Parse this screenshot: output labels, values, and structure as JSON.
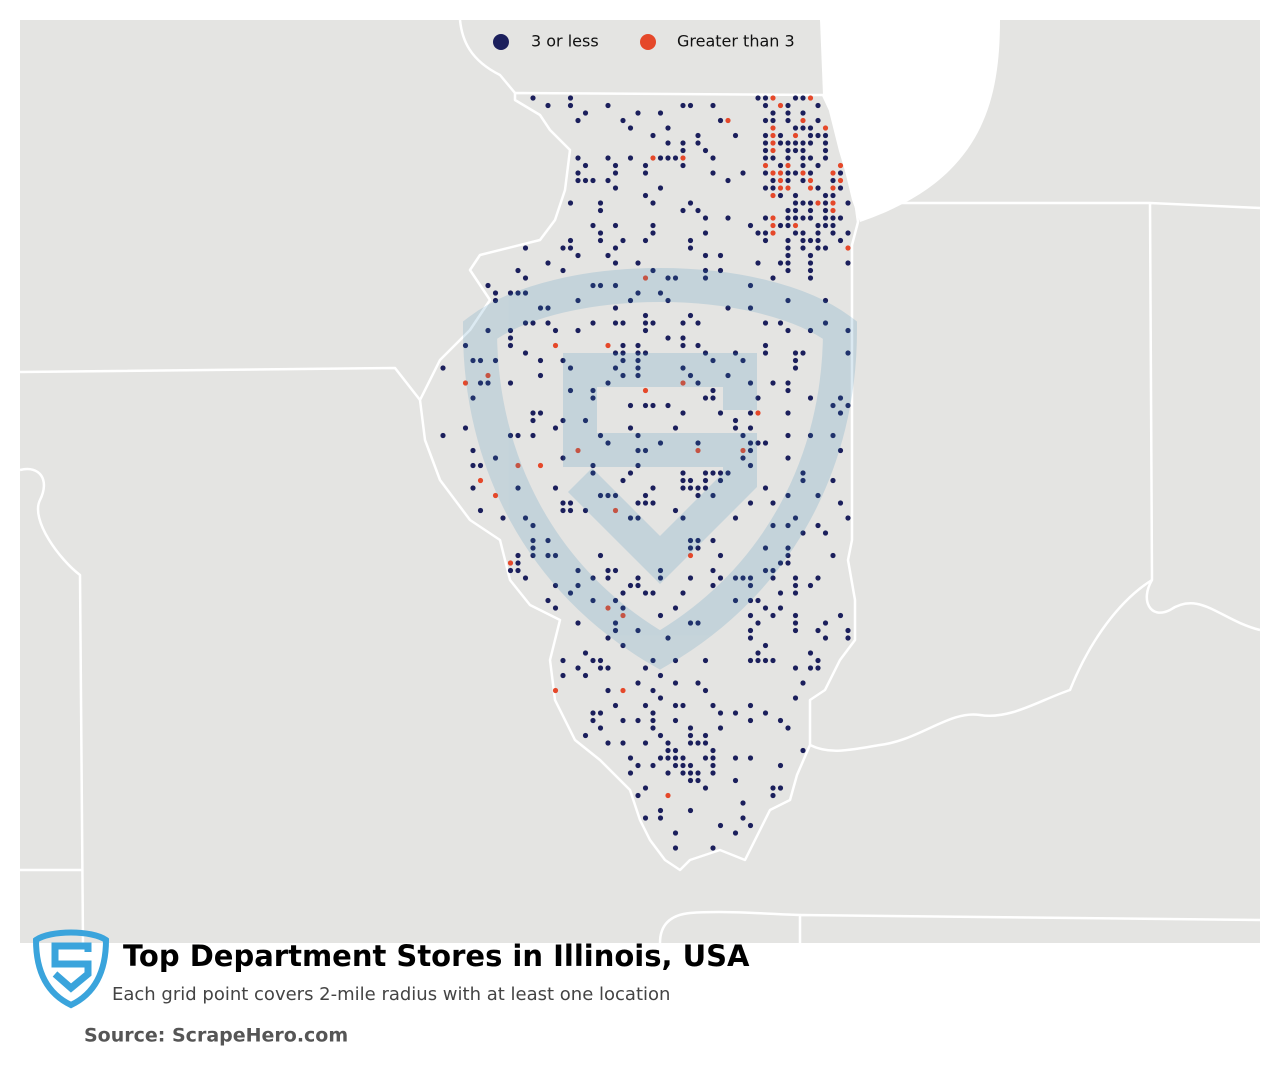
{
  "map": {
    "legend": [
      {
        "label": "3 or less",
        "color": "#1b1f5c"
      },
      {
        "label": "Greater than 3",
        "color": "#e5482a"
      }
    ]
  },
  "footer": {
    "title": "Top Department Stores in Illinois, USA",
    "subtitle": "Each grid point covers 2-mile radius with at least one location",
    "source": "Source: ScrapeHero.com"
  }
}
